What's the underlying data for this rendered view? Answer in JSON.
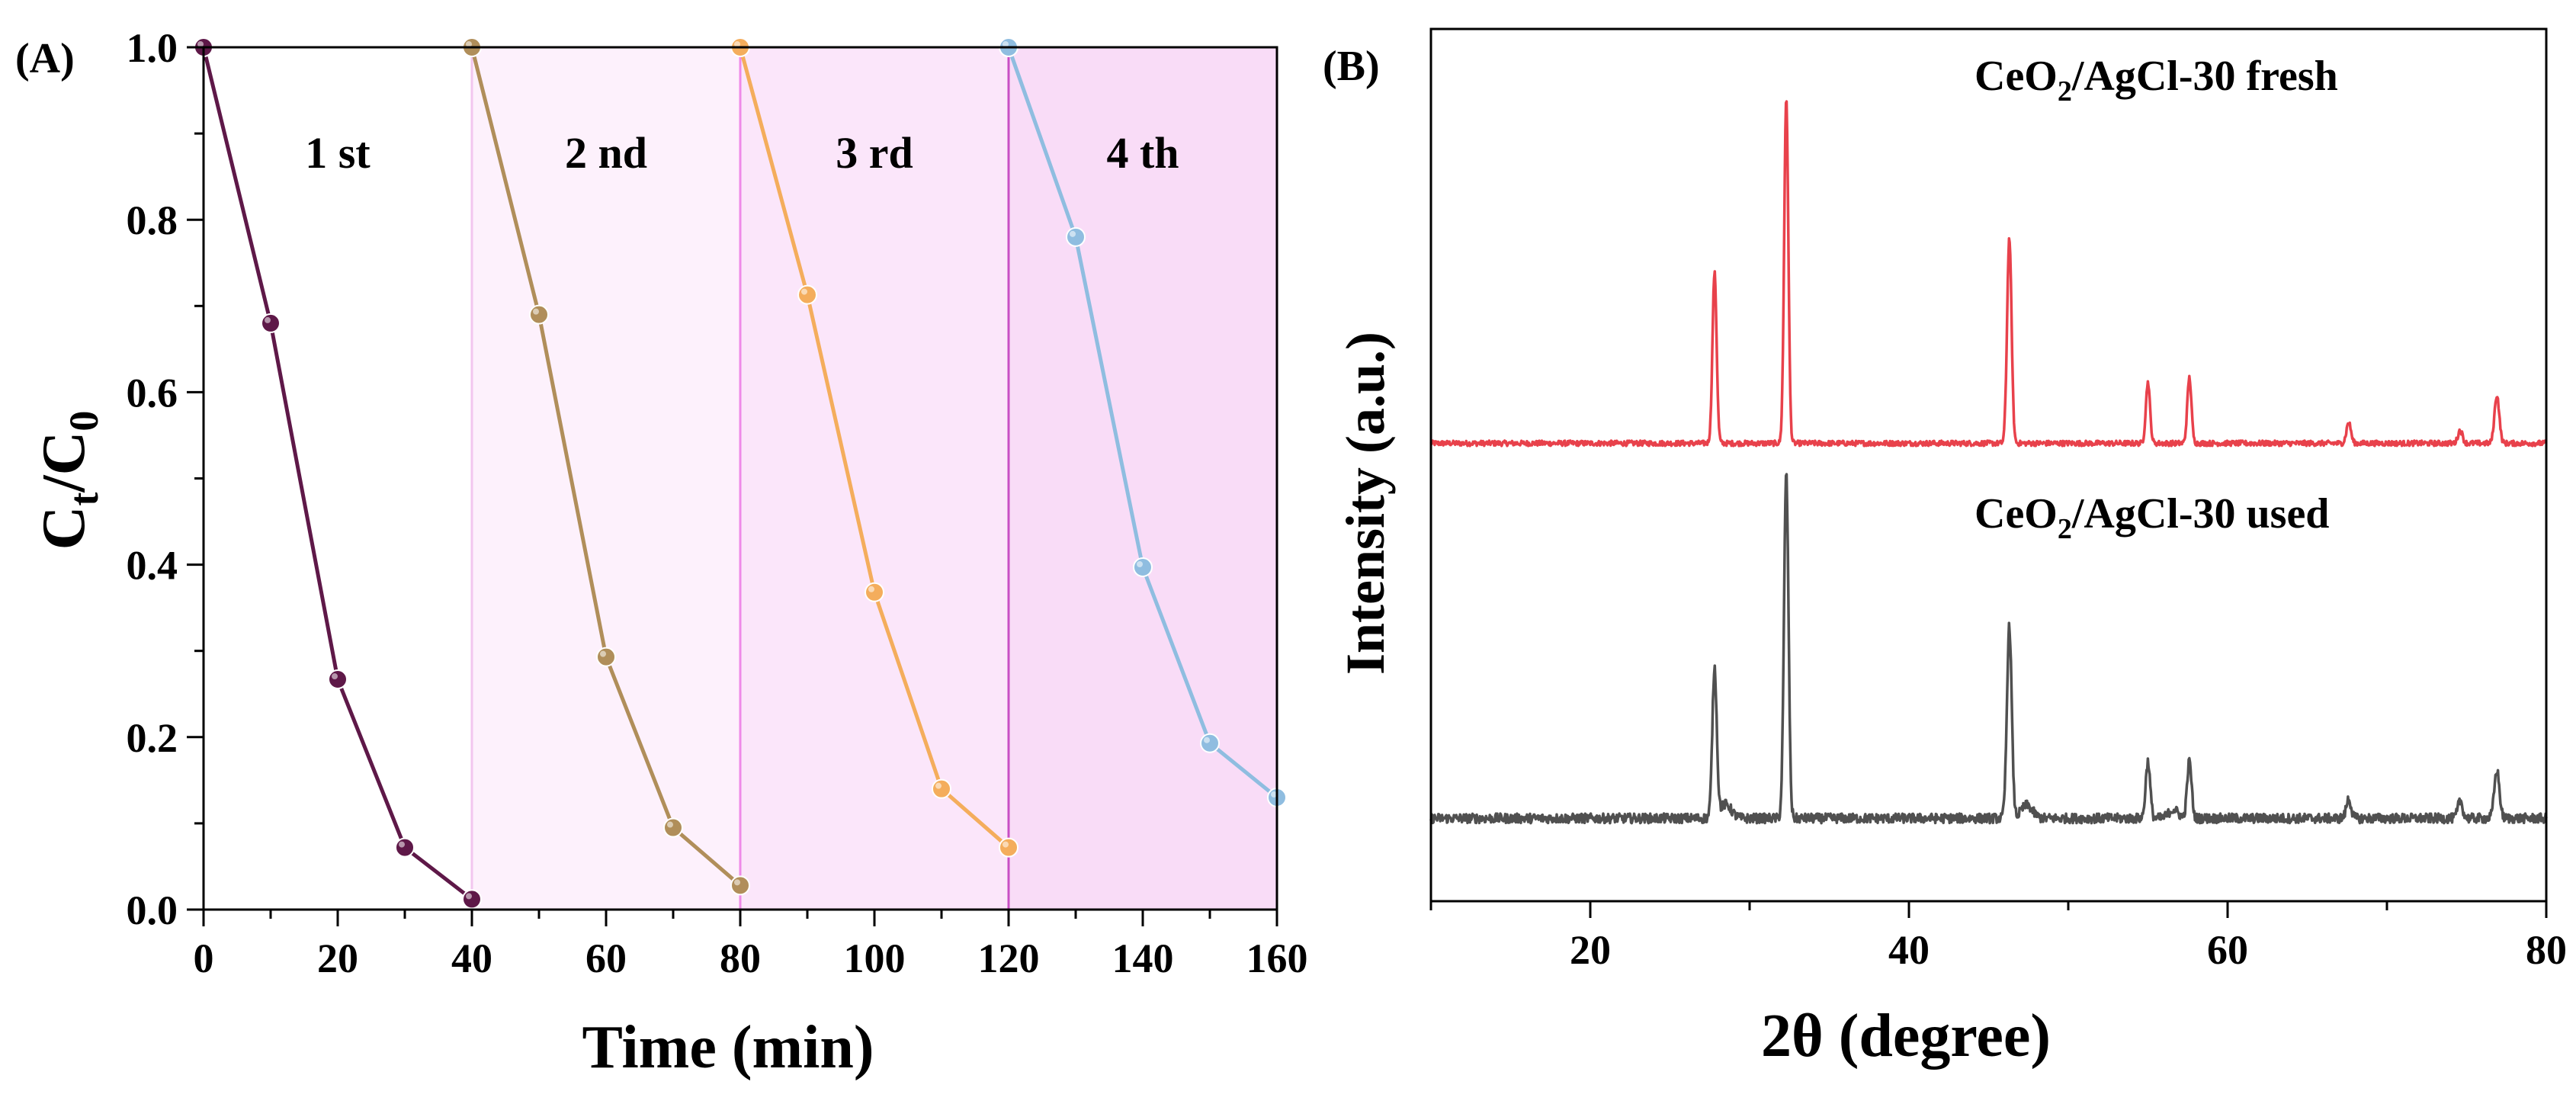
{
  "panels": {
    "a": {
      "label": "(A)"
    },
    "b": {
      "label": "(B)"
    }
  },
  "chart_data": [
    {
      "panel": "A",
      "type": "line",
      "xlabel": "Time (min)",
      "ylabel": "C",
      "ylabel_sub1": "t",
      "ylabel_mid": "/C",
      "ylabel_sub2": "0",
      "xlim": [
        0,
        160
      ],
      "ylim": [
        0.0,
        1.0
      ],
      "xticks": [
        0,
        20,
        40,
        60,
        80,
        100,
        120,
        140,
        160
      ],
      "xtick_labels": [
        "0",
        "20",
        "40",
        "60",
        "80",
        "100",
        "120",
        "140",
        "160"
      ],
      "yticks": [
        0.0,
        0.2,
        0.4,
        0.6,
        0.8,
        1.0
      ],
      "ytick_labels": [
        "0.0",
        "0.2",
        "0.4",
        "0.6",
        "0.8",
        "1.0"
      ],
      "regions": [
        {
          "label": "1 st",
          "x": [
            0,
            40
          ],
          "fill": "#ffffff",
          "edge": "none"
        },
        {
          "label": "2 nd",
          "x": [
            40,
            80
          ],
          "fill": "#fdf1fc",
          "edge": "#f2c6ef"
        },
        {
          "label": "3 rd",
          "x": [
            80,
            120
          ],
          "fill": "#fbe6fa",
          "edge": "#ee8ae8"
        },
        {
          "label": "4 th",
          "x": [
            120,
            160
          ],
          "fill": "#f9dcf7",
          "edge": "#c84fc4"
        }
      ],
      "series": [
        {
          "name": "1 st",
          "color": "#5e1848",
          "x": [
            0,
            10,
            20,
            30,
            40
          ],
          "y": [
            1.0,
            0.68,
            0.267,
            0.072,
            0.012
          ]
        },
        {
          "name": "2 nd",
          "color": "#b08e5a",
          "x": [
            40,
            50,
            60,
            70,
            80
          ],
          "y": [
            1.0,
            0.69,
            0.293,
            0.095,
            0.028
          ]
        },
        {
          "name": "3 rd",
          "color": "#f4ad5c",
          "x": [
            80,
            90,
            100,
            110,
            120
          ],
          "y": [
            1.0,
            0.713,
            0.368,
            0.14,
            0.072
          ]
        },
        {
          "name": "4 th",
          "color": "#8fbde0",
          "x": [
            120,
            130,
            140,
            150,
            160
          ],
          "y": [
            1.0,
            0.78,
            0.397,
            0.193,
            0.13
          ]
        }
      ]
    },
    {
      "panel": "B",
      "type": "line",
      "xlabel": "2θ (degree)",
      "ylabel": "Intensity (a.u.)",
      "xlim": [
        10,
        80
      ],
      "ylim": [
        0,
        100
      ],
      "xticks": [
        20,
        40,
        60,
        80
      ],
      "xtick_labels": [
        "20",
        "40",
        "60",
        "80"
      ],
      "minor_xticks": [
        10,
        30,
        50,
        70
      ],
      "series": [
        {
          "name": "CeO2/AgCl-30 fresh",
          "label_main": "CeO",
          "label_sub": "2",
          "label_rest": "/AgCl-30 fresh",
          "color": "#e8414b",
          "baseline": 52.5,
          "noise": 0.3,
          "peaks": [
            {
              "pos": 27.8,
              "height": 19.5,
              "width": 0.13
            },
            {
              "pos": 32.3,
              "height": 39.5,
              "width": 0.13
            },
            {
              "pos": 46.3,
              "height": 23.5,
              "width": 0.14
            },
            {
              "pos": 55.0,
              "height": 7.0,
              "width": 0.13
            },
            {
              "pos": 57.6,
              "height": 7.5,
              "width": 0.13
            },
            {
              "pos": 67.6,
              "height": 2.4,
              "width": 0.14
            },
            {
              "pos": 74.6,
              "height": 1.5,
              "width": 0.14
            },
            {
              "pos": 76.9,
              "height": 5.5,
              "width": 0.15
            }
          ]
        },
        {
          "name": "CeO2/AgCl-30 used",
          "label_main": "CeO",
          "label_sub": "2",
          "label_rest": "/AgCl-30 used",
          "color": "#505050",
          "baseline": 9.5,
          "noise": 0.55,
          "peaks": [
            {
              "pos": 27.8,
              "height": 17.0,
              "width": 0.14
            },
            {
              "pos": 28.5,
              "height": 1.6,
              "width": 0.35
            },
            {
              "pos": 32.3,
              "height": 39.5,
              "width": 0.14
            },
            {
              "pos": 46.3,
              "height": 22.0,
              "width": 0.15
            },
            {
              "pos": 47.4,
              "height": 1.5,
              "width": 0.35
            },
            {
              "pos": 55.0,
              "height": 6.5,
              "width": 0.14
            },
            {
              "pos": 56.6,
              "height": 1.0,
              "width": 0.3
            },
            {
              "pos": 57.6,
              "height": 6.5,
              "width": 0.14
            },
            {
              "pos": 67.6,
              "height": 2.2,
              "width": 0.15
            },
            {
              "pos": 74.6,
              "height": 2.0,
              "width": 0.15
            },
            {
              "pos": 76.9,
              "height": 5.5,
              "width": 0.16
            }
          ]
        }
      ]
    }
  ]
}
